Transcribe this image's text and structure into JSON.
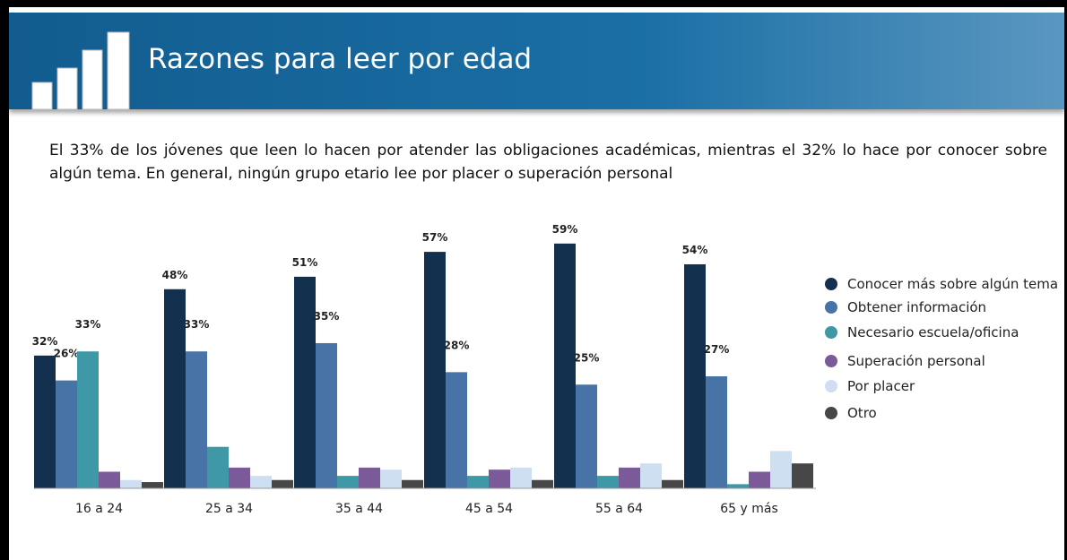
{
  "chart_data": {
    "type": "bar",
    "title": "Razones para leer por edad",
    "subtitle": "El 33% de los jóvenes que leen lo hacen por atender las obligaciones académicas, mientras el 32% lo hace por conocer sobre algún tema. En general, ningún grupo etario lee por placer o superación personal",
    "categories": [
      "16 a 24",
      "25 a 34",
      "35 a 44",
      "45 a 54",
      "55 a 64",
      "65 y más"
    ],
    "series": [
      {
        "name": "Conocer más sobre algún tema",
        "color": "#14304f",
        "values": [
          32,
          48,
          51,
          57,
          59,
          54
        ],
        "value_labels": [
          "32%",
          "48%",
          "51%",
          "57%",
          "59%",
          "54%"
        ]
      },
      {
        "name": "Obtener información",
        "color": "#4873a6",
        "values": [
          26,
          33,
          35,
          28,
          25,
          27
        ],
        "value_labels": [
          "26%",
          "33%",
          "35%",
          "28%",
          "25%",
          "27%"
        ]
      },
      {
        "name": "Necesario escuela/oficina",
        "color": "#3e98a6",
        "values": [
          33,
          10,
          3,
          3,
          3,
          1
        ],
        "value_labels": [
          "33%",
          null,
          null,
          null,
          null,
          null
        ]
      },
      {
        "name": "Superación personal",
        "color": "#7a5a98",
        "values": [
          4,
          5,
          5,
          4.5,
          5,
          4
        ]
      },
      {
        "name": "Por placer",
        "color": "#cfdff2",
        "values": [
          2,
          3,
          4.5,
          5,
          6,
          9
        ]
      },
      {
        "name": "Otro",
        "color": "#474747",
        "values": [
          1.5,
          2,
          2,
          2,
          2,
          6
        ]
      }
    ],
    "legend": "right"
  }
}
